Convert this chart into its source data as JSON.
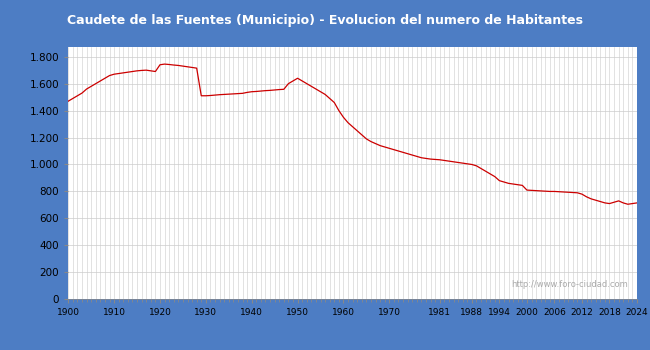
{
  "title": "Caudete de las Fuentes (Municipio) - Evolucion del numero de Habitantes",
  "title_bg_color": "#4d7dc4",
  "title_text_color": "#ffffff",
  "plot_bg_color": "#ffffff",
  "figure_bg_color": "#4d7dc4",
  "line_color": "#cc0000",
  "grid_color": "#cccccc",
  "watermark": "http://www.foro-ciudad.com",
  "years": [
    1900,
    1901,
    1902,
    1903,
    1904,
    1905,
    1906,
    1907,
    1908,
    1909,
    1910,
    1911,
    1912,
    1913,
    1914,
    1915,
    1916,
    1917,
    1918,
    1919,
    1920,
    1921,
    1922,
    1923,
    1924,
    1925,
    1926,
    1927,
    1928,
    1929,
    1930,
    1931,
    1932,
    1933,
    1934,
    1935,
    1936,
    1937,
    1938,
    1939,
    1940,
    1941,
    1942,
    1943,
    1944,
    1945,
    1946,
    1947,
    1948,
    1949,
    1950,
    1951,
    1952,
    1953,
    1954,
    1955,
    1956,
    1957,
    1958,
    1959,
    1960,
    1961,
    1962,
    1963,
    1964,
    1965,
    1966,
    1967,
    1968,
    1969,
    1970,
    1971,
    1972,
    1973,
    1974,
    1975,
    1976,
    1977,
    1978,
    1979,
    1981,
    1982,
    1983,
    1984,
    1985,
    1986,
    1987,
    1988,
    1989,
    1990,
    1991,
    1992,
    1993,
    1994,
    1995,
    1996,
    1997,
    1998,
    1999,
    2000,
    2001,
    2002,
    2003,
    2004,
    2005,
    2006,
    2007,
    2008,
    2009,
    2010,
    2011,
    2012,
    2013,
    2014,
    2015,
    2016,
    2017,
    2018,
    2019,
    2020,
    2021,
    2022,
    2023,
    2024
  ],
  "population": [
    1470,
    1490,
    1510,
    1530,
    1560,
    1580,
    1600,
    1620,
    1640,
    1660,
    1670,
    1675,
    1680,
    1685,
    1690,
    1695,
    1698,
    1700,
    1695,
    1690,
    1740,
    1745,
    1742,
    1738,
    1735,
    1730,
    1725,
    1720,
    1715,
    1510,
    1510,
    1512,
    1515,
    1518,
    1520,
    1522,
    1524,
    1526,
    1528,
    1535,
    1540,
    1542,
    1545,
    1548,
    1550,
    1553,
    1556,
    1558,
    1600,
    1620,
    1640,
    1620,
    1600,
    1580,
    1560,
    1540,
    1520,
    1490,
    1460,
    1400,
    1350,
    1310,
    1280,
    1250,
    1220,
    1190,
    1170,
    1155,
    1140,
    1130,
    1120,
    1110,
    1100,
    1090,
    1080,
    1070,
    1060,
    1050,
    1045,
    1040,
    1035,
    1030,
    1025,
    1020,
    1015,
    1010,
    1005,
    1000,
    990,
    970,
    950,
    930,
    910,
    880,
    870,
    860,
    855,
    850,
    845,
    810,
    808,
    806,
    804,
    802,
    800,
    800,
    798,
    796,
    794,
    792,
    790,
    780,
    760,
    745,
    735,
    725,
    715,
    710,
    720,
    730,
    715,
    705,
    710,
    715
  ],
  "xtick_labels": [
    "1900",
    "1910",
    "1920",
    "1930",
    "1940",
    "1950",
    "1960",
    "1970",
    "1981",
    "1988",
    "1994",
    "2000",
    "2006",
    "2012",
    "2018",
    "2024"
  ],
  "xtick_positions": [
    1900,
    1910,
    1920,
    1930,
    1940,
    1950,
    1960,
    1970,
    1981,
    1988,
    1994,
    2000,
    2006,
    2012,
    2018,
    2024
  ],
  "ylim": [
    0,
    1870
  ],
  "ytick_values": [
    0,
    200,
    400,
    600,
    800,
    1000,
    1200,
    1400,
    1600,
    1800
  ]
}
